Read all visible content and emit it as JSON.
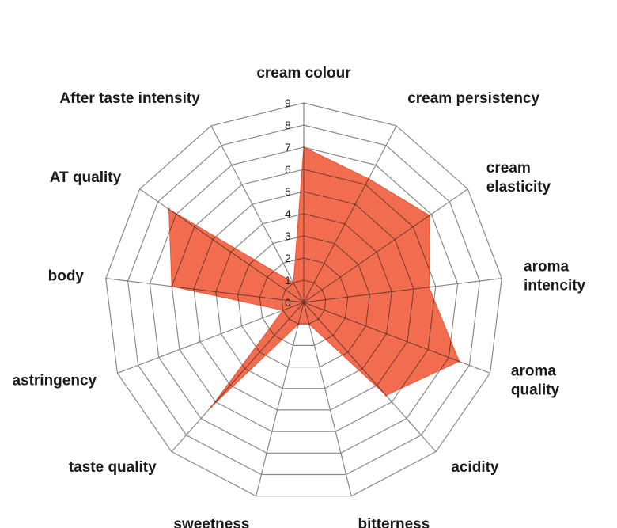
{
  "chart_data": {
    "type": "radar",
    "axes": [
      "cream colour",
      "cream persistency",
      "cream elasticity",
      "aroma intencity",
      "aroma quality",
      "acidity",
      "bitterness",
      "sweetness",
      "taste quality",
      "astringency",
      "body",
      "AT quality",
      "After taste intensity"
    ],
    "axis_label_lines": [
      [
        "cream colour"
      ],
      [
        "cream persistency"
      ],
      [
        "cream",
        "elasticity"
      ],
      [
        "aroma",
        "intencity"
      ],
      [
        "aroma",
        "quality"
      ],
      [
        "acidity"
      ],
      [
        "bitterness"
      ],
      [
        "sweetness"
      ],
      [
        "taste quality"
      ],
      [
        "astringency"
      ],
      [
        "body"
      ],
      [
        "AT quality"
      ],
      [
        "After taste intensity"
      ]
    ],
    "values": [
      7,
      6.3,
      6.9,
      5.7,
      7.5,
      5.6,
      1.0,
      1.0,
      6.3,
      1.0,
      6.0,
      7.4,
      1.0
    ],
    "rmin": 0,
    "rmax": 9,
    "ticks": [
      "0",
      "1",
      "2",
      "3",
      "4",
      "5",
      "6",
      "7",
      "8",
      "9"
    ],
    "fill_color": "#f26d50",
    "grid_color": "#8a8a8a",
    "legend": "none"
  }
}
